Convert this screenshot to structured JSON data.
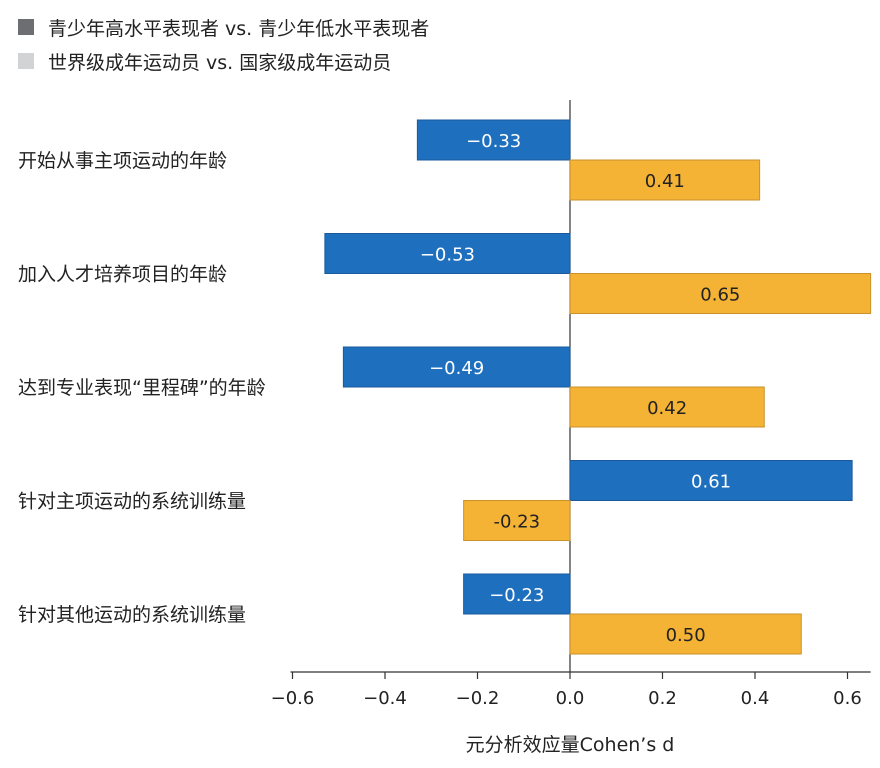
{
  "chart_data": {
    "type": "bar",
    "orientation": "horizontal",
    "categories": [
      "开始从事主项运动的年龄",
      "加入人才培养项目的年龄",
      "达到专业表现“里程碑”的年龄",
      "针对主项运动的系统训练量",
      "针对其他运动的系统训练量"
    ],
    "series": [
      {
        "name": "青少年高水平表现者 vs. 青少年低水平表现者",
        "color": "#1f6fbf",
        "legend_color": "#6d6e71",
        "values": [
          -0.33,
          -0.53,
          -0.49,
          0.61,
          -0.23
        ]
      },
      {
        "name": "世界级成年运动员 vs. 国家级成年运动员",
        "color": "#f5b335",
        "legend_color": "#d1d3d4",
        "values": [
          0.41,
          0.65,
          0.42,
          -0.23,
          0.5
        ]
      }
    ],
    "data_labels": [
      [
        "−0.33",
        "−0.53",
        "−0.49",
        "0.61",
        "−0.23"
      ],
      [
        "0.41",
        "0.65",
        "0.42",
        "-0.23",
        "0.50"
      ]
    ],
    "xlabel": "元分析效应量Cohen’s d",
    "xlim": [
      -0.6,
      0.65
    ],
    "xticks": [
      -0.6,
      -0.4,
      -0.2,
      0.0,
      0.2,
      0.4,
      0.6
    ],
    "xtick_labels": [
      "−0.6",
      "−0.4",
      "−0.2",
      "0.0",
      "0.2",
      "0.4",
      "0.6"
    ],
    "legend_position": "top-left",
    "grid": false
  }
}
